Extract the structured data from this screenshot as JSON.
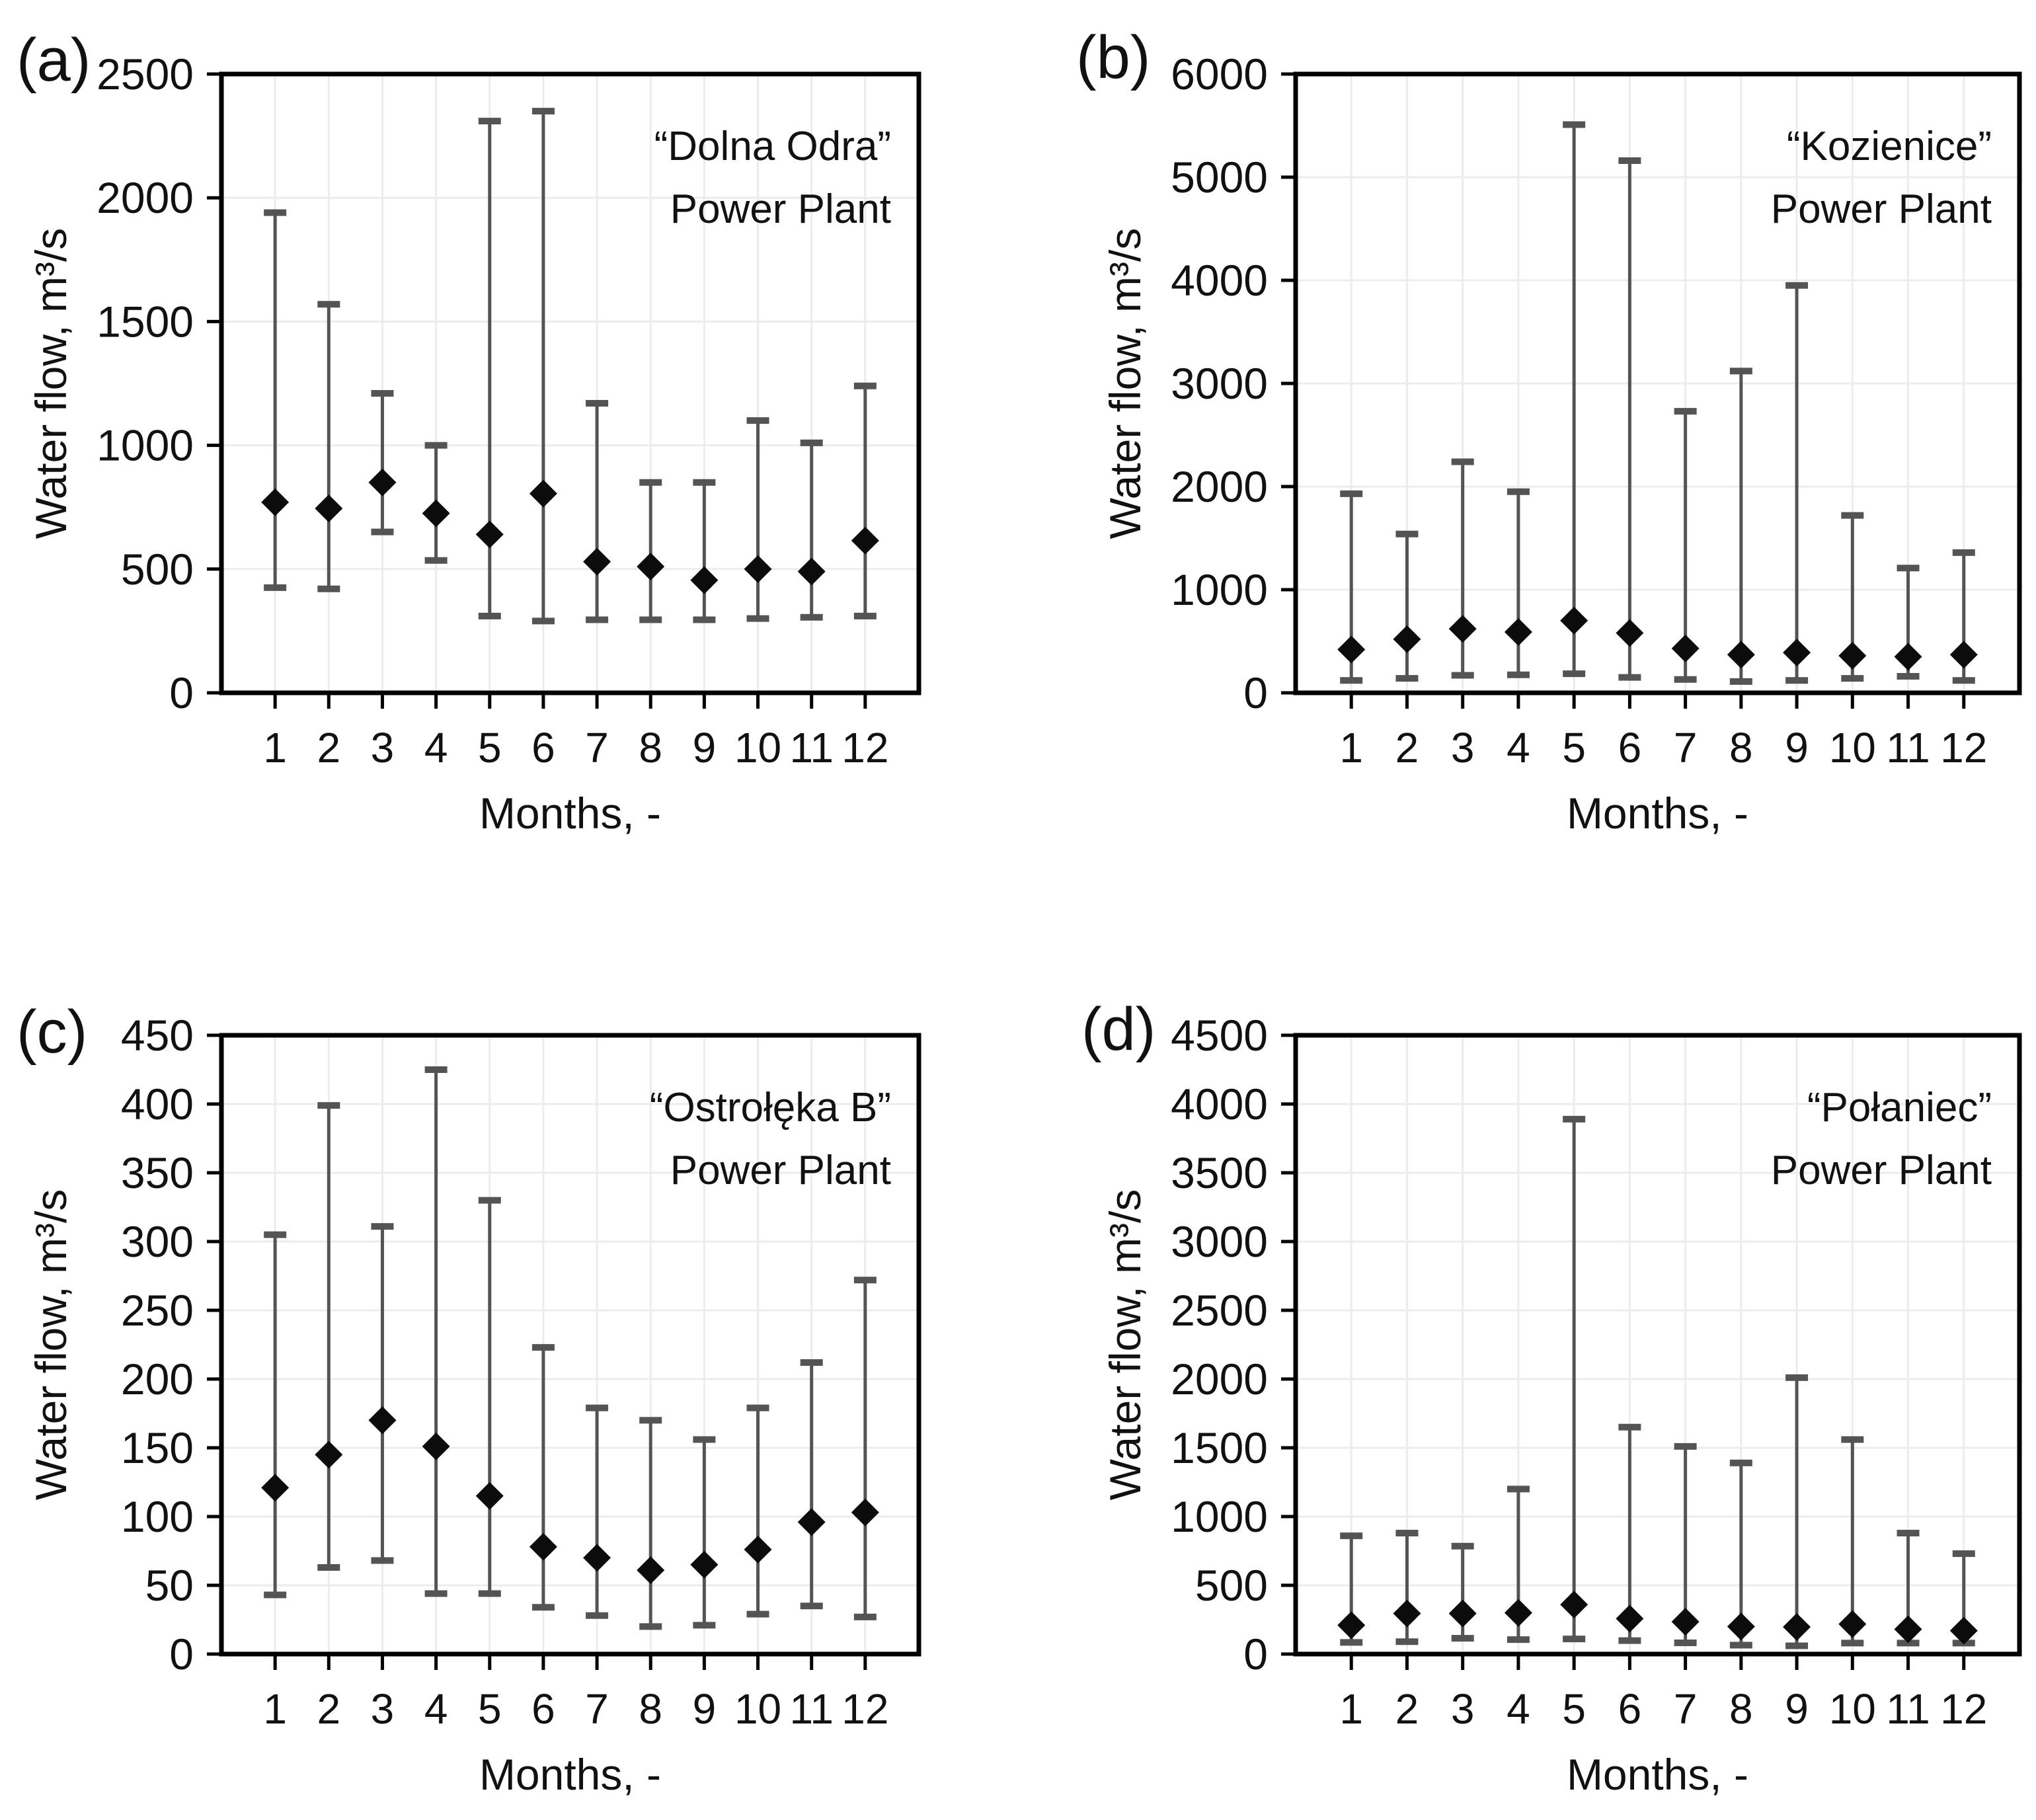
{
  "page": {
    "background": "#ffffff"
  },
  "style_colors": {
    "error_bar": "#545454",
    "marker": "#0c0c0c",
    "gridline": "#ececec",
    "axis": "#000000",
    "text": "#111111"
  },
  "chart_data": [
    {
      "type": "scatter",
      "panel_label": "(a)",
      "title_line1": "“Dolna Odra”",
      "title_line2": "Power Plant",
      "ylabel": "Water flow, m³/s",
      "xlabel": "Months, -",
      "months": [
        "1",
        "2",
        "3",
        "4",
        "5",
        "6",
        "7",
        "8",
        "9",
        "10",
        "11",
        "12"
      ],
      "ylim": [
        0,
        2500
      ],
      "ytick_step": 500,
      "grid": true,
      "legend": "none",
      "series": [
        {
          "name": "mean",
          "values": [
            770,
            745,
            850,
            725,
            640,
            805,
            530,
            510,
            455,
            500,
            490,
            615
          ]
        },
        {
          "name": "min",
          "values": [
            425,
            420,
            650,
            535,
            310,
            290,
            295,
            295,
            295,
            300,
            305,
            310
          ]
        },
        {
          "name": "max",
          "values": [
            1940,
            1570,
            1210,
            1000,
            2310,
            2350,
            1170,
            850,
            850,
            1100,
            1010,
            1240
          ]
        }
      ]
    },
    {
      "type": "scatter",
      "panel_label": "(b)",
      "title_line1": "“Kozienice”",
      "title_line2": "Power Plant",
      "ylabel": "Water flow, m³/s",
      "xlabel": "Months, -",
      "months": [
        "1",
        "2",
        "3",
        "4",
        "5",
        "6",
        "7",
        "8",
        "9",
        "10",
        "11",
        "12"
      ],
      "ylim": [
        0,
        6000
      ],
      "ytick_step": 1000,
      "grid": true,
      "legend": "none",
      "series": [
        {
          "name": "mean",
          "values": [
            420,
            520,
            620,
            590,
            700,
            580,
            430,
            370,
            390,
            360,
            350,
            370
          ]
        },
        {
          "name": "min",
          "values": [
            120,
            140,
            170,
            175,
            185,
            150,
            130,
            110,
            120,
            140,
            160,
            120
          ]
        },
        {
          "name": "max",
          "values": [
            1930,
            1540,
            2240,
            1950,
            5510,
            5160,
            2730,
            3120,
            3950,
            1720,
            1210,
            1360
          ]
        }
      ]
    },
    {
      "type": "scatter",
      "panel_label": "(c)",
      "title_line1": "“Ostrołęka B”",
      "title_line2": "Power Plant",
      "ylabel": "Water flow, m³/s",
      "xlabel": "Months, -",
      "months": [
        "1",
        "2",
        "3",
        "4",
        "5",
        "6",
        "7",
        "8",
        "9",
        "10",
        "11",
        "12"
      ],
      "ylim": [
        0,
        450
      ],
      "ytick_step": 50,
      "grid": true,
      "legend": "none",
      "series": [
        {
          "name": "mean",
          "values": [
            121,
            145,
            170,
            151,
            115,
            78,
            70,
            61,
            65,
            76,
            96,
            103
          ]
        },
        {
          "name": "min",
          "values": [
            43,
            63,
            68,
            44,
            44,
            34,
            28,
            20,
            21,
            29,
            35,
            27
          ]
        },
        {
          "name": "max",
          "values": [
            305,
            399,
            311,
            425,
            330,
            223,
            179,
            170,
            156,
            179,
            212,
            272
          ]
        }
      ]
    },
    {
      "type": "scatter",
      "panel_label": "(d)",
      "title_line1": "“Połaniec”",
      "title_line2": "Power Plant",
      "ylabel": "Water flow, m³/s",
      "xlabel": "Months, -",
      "months": [
        "1",
        "2",
        "3",
        "4",
        "5",
        "6",
        "7",
        "8",
        "9",
        "10",
        "11",
        "12"
      ],
      "ylim": [
        0,
        4500
      ],
      "ytick_step": 500,
      "grid": true,
      "legend": "none",
      "series": [
        {
          "name": "mean",
          "values": [
            210,
            295,
            295,
            300,
            360,
            258,
            235,
            200,
            197,
            218,
            180,
            170
          ]
        },
        {
          "name": "min",
          "values": [
            85,
            90,
            115,
            105,
            110,
            98,
            82,
            65,
            60,
            80,
            80,
            80
          ]
        },
        {
          "name": "max",
          "values": [
            860,
            880,
            785,
            1200,
            3890,
            1650,
            1510,
            1390,
            2010,
            1560,
            880,
            730
          ]
        }
      ]
    }
  ]
}
